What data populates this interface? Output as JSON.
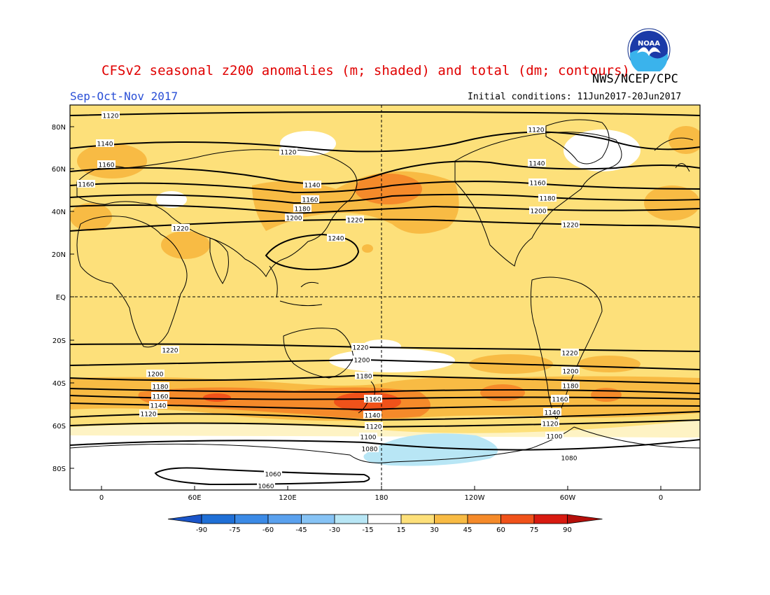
{
  "header": {
    "title": "CFSv2 seasonal z200 anomalies (m; shaded) and total (dm; contours)",
    "org": "NWS/NCEP/CPC",
    "season": "Sep-Oct-Nov 2017",
    "initial_conditions": "Initial conditions: 11Jun2017-20Jun2017",
    "logo_text": "NOAA"
  },
  "map": {
    "lat_labels": [
      "80N",
      "60N",
      "40N",
      "20N",
      "EQ",
      "20S",
      "40S",
      "60S",
      "80S"
    ],
    "lon_labels": [
      "0",
      "60E",
      "120E",
      "180",
      "120W",
      "60W",
      "0"
    ],
    "contour_labels": [
      {
        "v": "1120",
        "lon": 0
      },
      {
        "v": "1140",
        "lon": 3
      },
      {
        "v": "1160",
        "lon": 3
      },
      {
        "v": "1160",
        "lon": -10
      },
      {
        "v": "1120",
        "lon": 125
      },
      {
        "v": "1120",
        "lon": -82
      },
      {
        "v": "1140",
        "lon": -72
      },
      {
        "v": "1140",
        "lon": 130
      },
      {
        "v": "1160",
        "lon": 130
      },
      {
        "v": "1160",
        "lon": -70
      },
      {
        "v": "1180",
        "lon": 128
      },
      {
        "v": "1180",
        "lon": -68
      },
      {
        "v": "1200",
        "lon": 125
      },
      {
        "v": "1200",
        "lon": -72
      },
      {
        "v": "1220",
        "lon": 50
      },
      {
        "v": "1220",
        "lon": 150
      },
      {
        "v": "1220",
        "lon": -52
      },
      {
        "v": "1240",
        "lon": 160
      },
      {
        "v": "1220",
        "lon": 40
      },
      {
        "v": "1220",
        "lon": 167
      },
      {
        "v": "1220",
        "lon": -52
      },
      {
        "v": "1200",
        "lon": 30
      },
      {
        "v": "1200",
        "lon": 167
      },
      {
        "v": "1200",
        "lon": -52
      },
      {
        "v": "1180",
        "lon": 40
      },
      {
        "v": "1180",
        "lon": 175
      },
      {
        "v": "1180",
        "lon": -52
      },
      {
        "v": "1160",
        "lon": 40
      },
      {
        "v": "1160",
        "lon": 178
      },
      {
        "v": "1160",
        "lon": -55
      },
      {
        "v": "1140",
        "lon": 40
      },
      {
        "v": "1140",
        "lon": 178
      },
      {
        "v": "1140",
        "lon": -57
      },
      {
        "v": "1120",
        "lon": 35
      },
      {
        "v": "1120",
        "lon": 178
      },
      {
        "v": "1120",
        "lon": -57
      },
      {
        "v": "1100",
        "lon": 178
      },
      {
        "v": "1100",
        "lon": -55
      },
      {
        "v": "1080",
        "lon": 178
      },
      {
        "v": "1080",
        "lon": -52
      },
      {
        "v": "1060",
        "lon": 112
      },
      {
        "v": "1060",
        "lon": 106
      }
    ]
  },
  "colorbar": {
    "labels": [
      "-90",
      "-75",
      "-60",
      "-45",
      "-30",
      "-15",
      "15",
      "30",
      "45",
      "60",
      "75",
      "90"
    ],
    "colors": [
      "#1f6fd6",
      "#3b8ae6",
      "#5aa1ee",
      "#86c3f5",
      "#b8e6f5",
      "#ffffff",
      "#fde07a",
      "#f8bb44",
      "#f58a2a",
      "#f0521a",
      "#d81a10"
    ],
    "neg_arrow_color": "#1a55c9",
    "pos_arrow_color": "#b50f0a"
  }
}
